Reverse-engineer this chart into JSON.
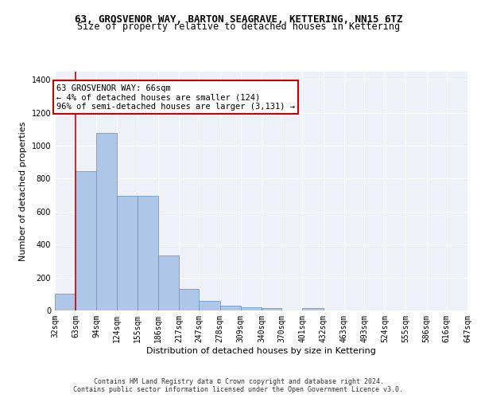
{
  "title": "63, GROSVENOR WAY, BARTON SEAGRAVE, KETTERING, NN15 6TZ",
  "subtitle": "Size of property relative to detached houses in Kettering",
  "xlabel": "Distribution of detached houses by size in Kettering",
  "ylabel": "Number of detached properties",
  "bar_color": "#aec6e8",
  "bar_edge_color": "#5a8fc0",
  "background_color": "#eef2f8",
  "grid_color": "#ffffff",
  "annotation_box_color": "#cc0000",
  "vline_color": "#cc0000",
  "annotation_text": "63 GROSVENOR WAY: 66sqm\n← 4% of detached houses are smaller (124)\n96% of semi-detached houses are larger (3,131) →",
  "property_size_sqm": 66,
  "bin_edges": [
    32,
    63,
    94,
    124,
    155,
    186,
    217,
    247,
    278,
    309,
    340,
    370,
    401,
    432,
    463,
    493,
    524,
    555,
    586,
    616,
    647
  ],
  "bin_labels": [
    "32sqm",
    "63sqm",
    "94sqm",
    "124sqm",
    "155sqm",
    "186sqm",
    "217sqm",
    "247sqm",
    "278sqm",
    "309sqm",
    "340sqm",
    "370sqm",
    "401sqm",
    "432sqm",
    "463sqm",
    "493sqm",
    "524sqm",
    "555sqm",
    "586sqm",
    "616sqm",
    "647sqm"
  ],
  "bar_heights": [
    100,
    845,
    1080,
    695,
    695,
    335,
    130,
    60,
    30,
    20,
    15,
    0,
    15,
    0,
    0,
    0,
    0,
    0,
    0,
    0
  ],
  "ylim": [
    0,
    1450
  ],
  "yticks": [
    0,
    200,
    400,
    600,
    800,
    1000,
    1200,
    1400
  ],
  "footer_text": "Contains HM Land Registry data © Crown copyright and database right 2024.\nContains public sector information licensed under the Open Government Licence v3.0.",
  "title_fontsize": 9,
  "subtitle_fontsize": 8.5,
  "ylabel_fontsize": 8,
  "xlabel_fontsize": 8,
  "tick_fontsize": 7,
  "annotation_fontsize": 7.5,
  "footer_fontsize": 6
}
